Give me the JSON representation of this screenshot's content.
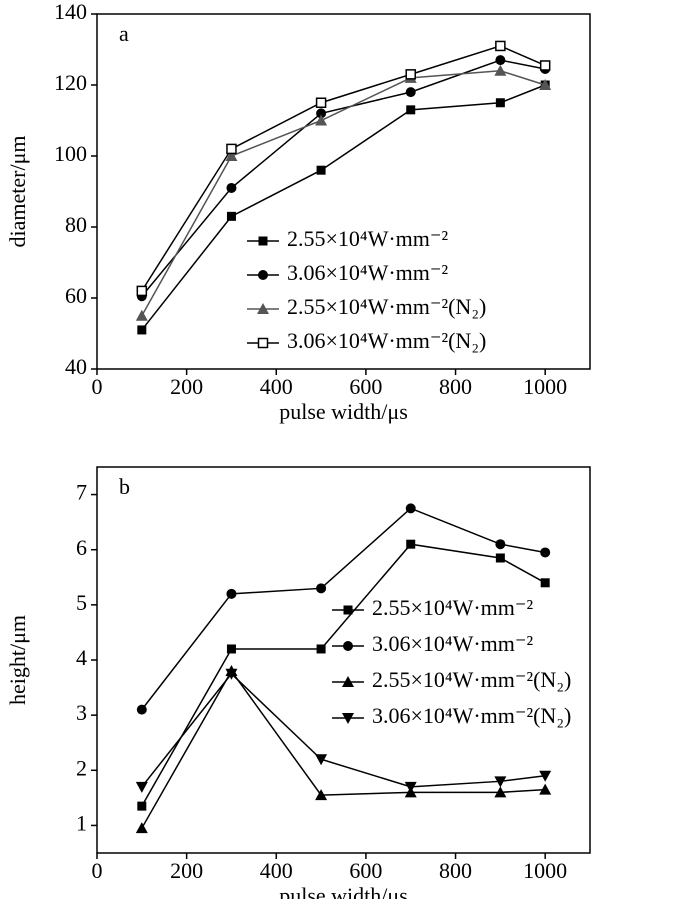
{
  "chart_data": [
    {
      "type": "line",
      "annotation": "a",
      "x_label": "pulse width/μs",
      "y_label": "diameter/μm",
      "x": [
        100,
        300,
        500,
        700,
        900,
        1000
      ],
      "xlim": [
        0,
        1100
      ],
      "xticks": [
        0,
        200,
        400,
        600,
        800,
        1000
      ],
      "ylim": [
        40,
        140
      ],
      "yticks": [
        40,
        60,
        80,
        100,
        120,
        140
      ],
      "legend": "center-right",
      "series": [
        {
          "name": "2.55×10⁴W·mm⁻²",
          "color": "#000000",
          "marker": "square",
          "values": [
            51,
            83,
            96,
            113,
            115,
            120
          ]
        },
        {
          "name": "3.06×10⁴W·mm⁻²",
          "color": "#000000",
          "marker": "circle",
          "values": [
            60.5,
            91,
            112,
            118,
            127,
            124.5
          ]
        },
        {
          "name": "2.55×10⁴W·mm⁻²(N₂)",
          "color": "#555555",
          "marker": "triangle",
          "values": [
            55,
            100,
            110,
            122,
            124,
            120
          ]
        },
        {
          "name": "3.06×10⁴W·mm⁻²(N₂)",
          "color": "#000000",
          "marker": "open-square",
          "values": [
            62,
            102,
            115,
            123,
            131,
            125.5
          ]
        }
      ]
    },
    {
      "type": "line",
      "annotation": "b",
      "x_label": "pulse width/μs",
      "y_label": "height/μm",
      "x": [
        100,
        300,
        500,
        700,
        900,
        1000
      ],
      "xlim": [
        0,
        1100
      ],
      "xticks": [
        0,
        200,
        400,
        600,
        800,
        1000
      ],
      "ylim": [
        0.5,
        7.5
      ],
      "yticks": [
        1,
        2,
        3,
        4,
        5,
        6,
        7
      ],
      "legend": "center-right",
      "series": [
        {
          "name": "2.55×10⁴W·mm⁻²",
          "color": "#000000",
          "marker": "square",
          "values": [
            1.35,
            4.2,
            4.2,
            6.1,
            5.85,
            5.4
          ]
        },
        {
          "name": "3.06×10⁴W·mm⁻²",
          "color": "#000000",
          "marker": "circle",
          "values": [
            3.1,
            5.2,
            5.3,
            6.75,
            6.1,
            5.95
          ]
        },
        {
          "name": "2.55×10⁴W·mm⁻²(N₂)",
          "color": "#000000",
          "marker": "triangle",
          "values": [
            0.95,
            3.8,
            1.55,
            1.6,
            1.6,
            1.65
          ]
        },
        {
          "name": "3.06×10⁴W·mm⁻²(N₂)",
          "color": "#000000",
          "marker": "triangle-down",
          "values": [
            1.7,
            3.75,
            2.2,
            1.7,
            1.8,
            1.9
          ]
        }
      ]
    }
  ]
}
